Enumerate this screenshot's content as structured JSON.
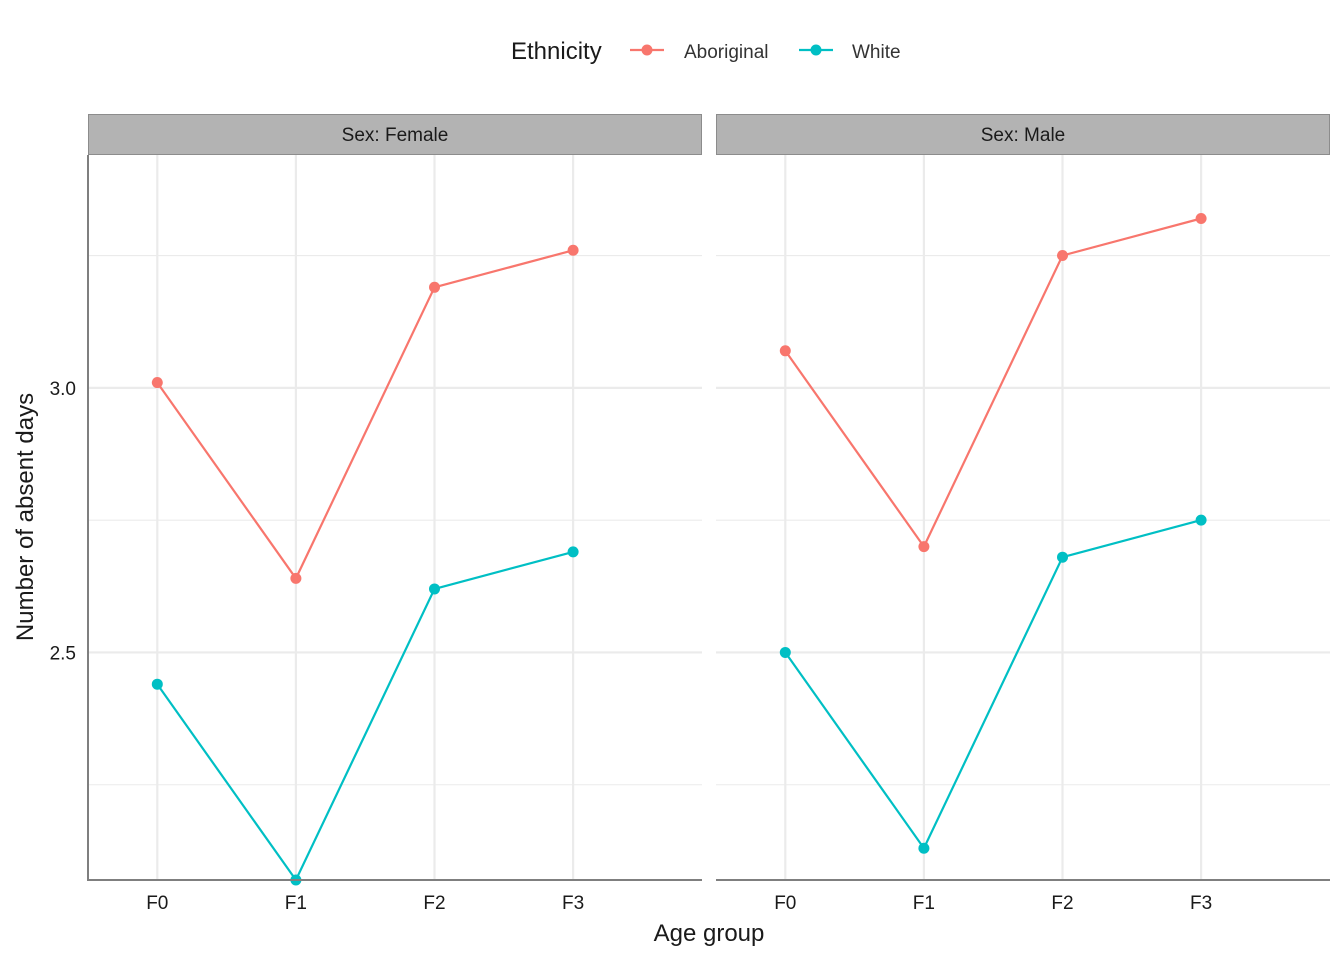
{
  "chart_data": {
    "type": "line",
    "xlabel": "Age group",
    "ylabel": "Number of absent days",
    "ylim": [
      2.07,
      3.44
    ],
    "yticks": [
      2.5,
      3.0
    ],
    "ytick_labels": [
      "2.5",
      "3.0"
    ],
    "grid": true,
    "legend": {
      "title": "Ethnicity",
      "placement": "top",
      "entries": [
        "Aboriginal",
        "White"
      ]
    },
    "categories": [
      "F0",
      "F1",
      "F2",
      "F3"
    ],
    "colors": {
      "Aboriginal": "#F8766D",
      "White": "#00BFC4"
    },
    "panels": [
      {
        "label": "Sex: Female",
        "series": [
          {
            "name": "Aboriginal",
            "values": [
              3.01,
              2.64,
              3.19,
              3.26
            ]
          },
          {
            "name": "White",
            "values": [
              2.44,
              2.07,
              2.62,
              2.69
            ]
          }
        ]
      },
      {
        "label": "Sex: Male",
        "series": [
          {
            "name": "Aboriginal",
            "values": [
              3.07,
              2.7,
              3.25,
              3.32
            ]
          },
          {
            "name": "White",
            "values": [
              2.5,
              2.13,
              2.68,
              2.75
            ]
          }
        ]
      }
    ]
  }
}
